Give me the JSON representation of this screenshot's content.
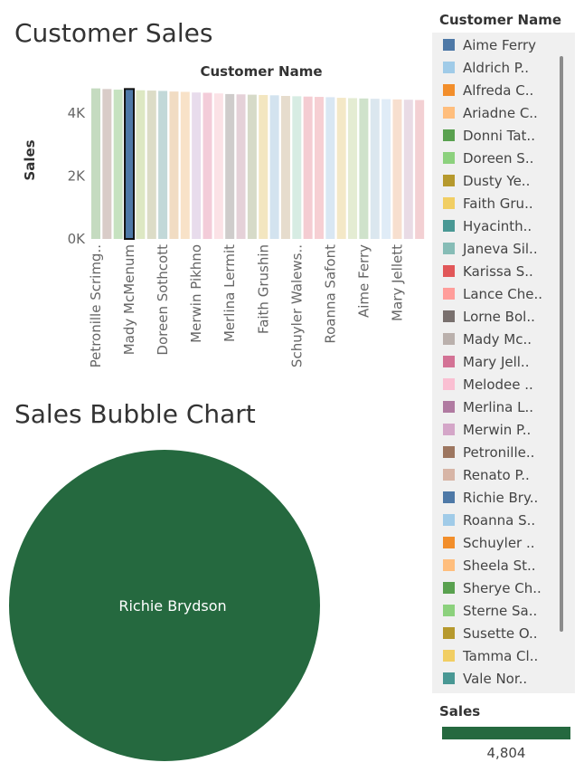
{
  "bar_title": "Customer Sales",
  "bubble_title": "Sales Bubble Chart",
  "legend": {
    "header": "Customer Name",
    "items": [
      {
        "label": "Aime Ferry",
        "color": "#4e79a7"
      },
      {
        "label": "Aldrich P..",
        "color": "#a0cbe8"
      },
      {
        "label": "Alfreda C..",
        "color": "#f28e2b"
      },
      {
        "label": "Ariadne C..",
        "color": "#ffbe7d"
      },
      {
        "label": "Donni Tat..",
        "color": "#59a14f"
      },
      {
        "label": "Doreen S..",
        "color": "#8cd17d"
      },
      {
        "label": "Dusty Ye..",
        "color": "#b6992d"
      },
      {
        "label": "Faith Gru..",
        "color": "#f1ce63"
      },
      {
        "label": "Hyacinth..",
        "color": "#499894"
      },
      {
        "label": "Janeva Sil..",
        "color": "#86bcb6"
      },
      {
        "label": "Karissa S..",
        "color": "#e15759"
      },
      {
        "label": "Lance Che..",
        "color": "#ff9d9a"
      },
      {
        "label": "Lorne Bol..",
        "color": "#79706e"
      },
      {
        "label": "Mady Mc..",
        "color": "#bab0ac"
      },
      {
        "label": "Mary Jell..",
        "color": "#d37295"
      },
      {
        "label": "Melodee ..",
        "color": "#fabfd2"
      },
      {
        "label": "Merlina L..",
        "color": "#b07aa1"
      },
      {
        "label": "Merwin P..",
        "color": "#d4a6c8"
      },
      {
        "label": "Petronille..",
        "color": "#9d7660"
      },
      {
        "label": "Renato P..",
        "color": "#d7b5a6"
      },
      {
        "label": "Richie Bry..",
        "color": "#4e79a7"
      },
      {
        "label": "Roanna S..",
        "color": "#a0cbe8"
      },
      {
        "label": "Schuyler ..",
        "color": "#f28e2b"
      },
      {
        "label": "Sheela St..",
        "color": "#ffbe7d"
      },
      {
        "label": "Sherye Ch..",
        "color": "#59a14f"
      },
      {
        "label": "Sterne Sa..",
        "color": "#8cd17d"
      },
      {
        "label": "Susette O..",
        "color": "#b6992d"
      },
      {
        "label": "Tamma Cl..",
        "color": "#f1ce63"
      },
      {
        "label": "Vale Nor..",
        "color": "#499894"
      }
    ]
  },
  "sales_legend": {
    "header": "Sales",
    "value": "4,804",
    "color": "#25693f"
  },
  "chart_data": [
    {
      "type": "bar",
      "title": "Customer Sales",
      "xlabel": "Customer Name",
      "ylabel": "Sales",
      "ylim": [
        0,
        5000
      ],
      "yticks": [
        {
          "value": 0,
          "label": "0K"
        },
        {
          "value": 2000,
          "label": "2K"
        },
        {
          "value": 4000,
          "label": "4K"
        }
      ],
      "categories": [
        "Petronille Scrimg..",
        "",
        "",
        "Mady McMenum",
        "",
        "",
        "Doreen Sothcott",
        "",
        "",
        "Merwin Pikhno",
        "",
        "",
        "Merlina Lermit",
        "",
        "",
        "Faith Grushin",
        "",
        "",
        "Schuyler Walews..",
        "",
        "",
        "Roanna Safont",
        "",
        "",
        "Aime Ferry",
        "",
        "",
        "Mary Jellett",
        "",
        ""
      ],
      "values": [
        4780,
        4760,
        4740,
        4760,
        4720,
        4710,
        4700,
        4680,
        4670,
        4650,
        4640,
        4620,
        4600,
        4590,
        4580,
        4570,
        4560,
        4540,
        4530,
        4520,
        4510,
        4500,
        4480,
        4470,
        4460,
        4450,
        4440,
        4430,
        4420,
        4410
      ],
      "colors": [
        "#c5dbc0",
        "#d9ccc8",
        "#c6e2c0",
        "#4e79a7",
        "#dde8c3",
        "#dcdcc7",
        "#c2d8d8",
        "#f1dcc3",
        "#f8e2c8",
        "#e8dcec",
        "#f3ccd9",
        "#fbe2e6",
        "#cfcccb",
        "#e5d1d8",
        "#d6dac8",
        "#f3e6c0",
        "#d3e3ef",
        "#e6dccd",
        "#d7ece3",
        "#f4ccd2",
        "#f6cfd3",
        "#d9e7f3",
        "#f4e8c7",
        "#e4ecd3",
        "#cfe2cb",
        "#dbe7ef",
        "#e0ecf7",
        "#f7dfcf",
        "#e9dbe5",
        "#f3d0d3"
      ],
      "highlight_index": 3
    },
    {
      "type": "bubble",
      "title": "Sales Bubble Chart",
      "bubbles": [
        {
          "label": "Richie Brydson",
          "value": 4804,
          "color": "#25693f"
        }
      ]
    }
  ]
}
